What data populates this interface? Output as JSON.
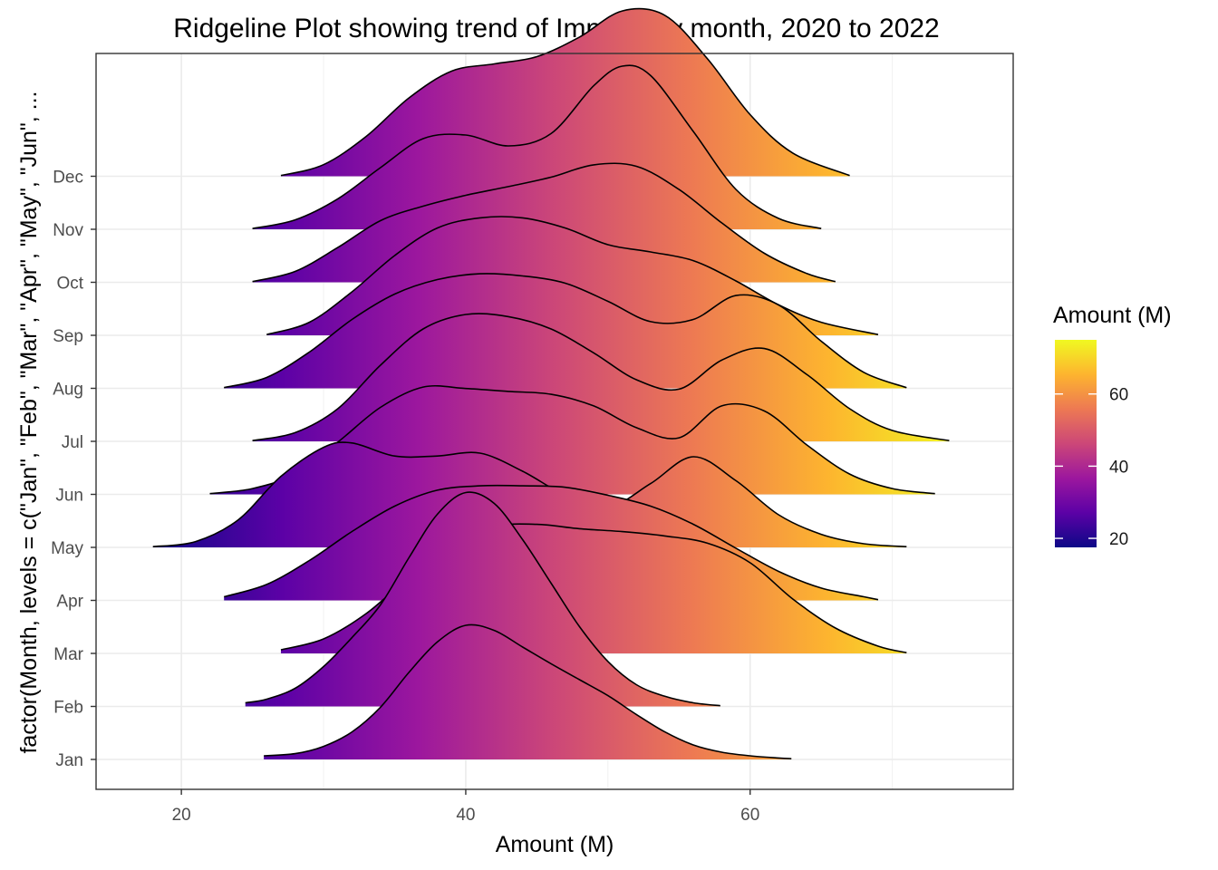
{
  "chart_data": {
    "type": "ridgeline",
    "title": "Ridgeline Plot showing trend of Imports by month, 2020 to 2022",
    "xlabel": "Amount (M)",
    "ylabel": "factor(Month, levels = c(\"Jan\", \"Feb\", \"Mar\", \"Apr\", \"May\", \"Jun\", ...",
    "xlim": [
      14,
      78.5
    ],
    "x_ticks": [
      20,
      40,
      60
    ],
    "grid": true,
    "fill_scale": {
      "title": "Amount (M)",
      "palette": "plasma",
      "min": 17.5,
      "max": 75,
      "ticks": [
        20,
        40,
        60
      ],
      "colors": [
        "#0d0887",
        "#5c01a6",
        "#9c179e",
        "#cc4778",
        "#ed7953",
        "#fdb42f",
        "#f0f921"
      ]
    },
    "outline_color": "#000000",
    "categories": [
      "Jan",
      "Feb",
      "Mar",
      "Apr",
      "May",
      "Jun",
      "Jul",
      "Aug",
      "Sep",
      "Oct",
      "Nov",
      "Dec"
    ],
    "series": [
      {
        "month": "Jan",
        "x": [
          25.8,
          28,
          30,
          32,
          34,
          36,
          38,
          40,
          42,
          44,
          46,
          48,
          50,
          52,
          54,
          56,
          58,
          60,
          62,
          62.9
        ],
        "density": [
          0.05,
          0.08,
          0.18,
          0.38,
          0.72,
          1.2,
          1.62,
          1.85,
          1.78,
          1.55,
          1.32,
          1.1,
          0.88,
          0.62,
          0.38,
          0.2,
          0.1,
          0.05,
          0.02,
          0.01
        ]
      },
      {
        "month": "Feb",
        "x": [
          24.5,
          26,
          28,
          30,
          32,
          34,
          36,
          38,
          40,
          42,
          44,
          46,
          48,
          50,
          52,
          54,
          56,
          57.9
        ],
        "density": [
          0.05,
          0.1,
          0.25,
          0.55,
          0.95,
          1.4,
          2.05,
          2.65,
          2.95,
          2.8,
          2.3,
          1.7,
          1.1,
          0.62,
          0.3,
          0.14,
          0.05,
          0.01
        ]
      },
      {
        "month": "Mar",
        "x": [
          27,
          30,
          33,
          36,
          39,
          42,
          45,
          48,
          51,
          54,
          57,
          60,
          63,
          66,
          69,
          71
        ],
        "density": [
          0.05,
          0.2,
          0.55,
          1.05,
          1.5,
          1.75,
          1.78,
          1.72,
          1.68,
          1.62,
          1.52,
          1.25,
          0.75,
          0.35,
          0.1,
          0.01
        ]
      },
      {
        "month": "Apr",
        "x": [
          23,
          26,
          29,
          32,
          35,
          38,
          41,
          44,
          47,
          50,
          53,
          56,
          59,
          62,
          65,
          68,
          69
        ],
        "density": [
          0.05,
          0.22,
          0.55,
          0.95,
          1.3,
          1.52,
          1.58,
          1.58,
          1.56,
          1.45,
          1.3,
          1.05,
          0.72,
          0.4,
          0.17,
          0.05,
          0.01
        ]
      },
      {
        "month": "May",
        "x": [
          18,
          21,
          24,
          27,
          30,
          32,
          35,
          38,
          41,
          44,
          47,
          50,
          53,
          56,
          59,
          62,
          65,
          68,
          71
        ],
        "density": [
          0.01,
          0.08,
          0.38,
          0.98,
          1.38,
          1.44,
          1.26,
          1.26,
          1.3,
          1.05,
          0.72,
          0.55,
          0.88,
          1.25,
          0.92,
          0.45,
          0.18,
          0.05,
          0.01
        ]
      },
      {
        "month": "Jun",
        "x": [
          22,
          25,
          28,
          31,
          34,
          37,
          40,
          43,
          46,
          49,
          52,
          55,
          58,
          61,
          64,
          67,
          70,
          73
        ],
        "density": [
          0.01,
          0.08,
          0.28,
          0.72,
          1.2,
          1.48,
          1.46,
          1.42,
          1.38,
          1.22,
          0.92,
          0.78,
          1.22,
          1.15,
          0.68,
          0.28,
          0.08,
          0.01
        ]
      },
      {
        "month": "Jul",
        "x": [
          25,
          28,
          31,
          34,
          37,
          40,
          43,
          46,
          49,
          52,
          55,
          58,
          61,
          64,
          67,
          70,
          74
        ],
        "density": [
          0.01,
          0.12,
          0.45,
          1.05,
          1.55,
          1.75,
          1.72,
          1.55,
          1.22,
          0.85,
          0.72,
          1.12,
          1.28,
          0.92,
          0.45,
          0.15,
          0.01
        ]
      },
      {
        "month": "Aug",
        "x": [
          23,
          26,
          29,
          32,
          35,
          38,
          41,
          44,
          47,
          50,
          53,
          56,
          59,
          62,
          65,
          68,
          71
        ],
        "density": [
          0.01,
          0.15,
          0.5,
          0.95,
          1.3,
          1.5,
          1.58,
          1.55,
          1.45,
          1.2,
          0.92,
          0.95,
          1.28,
          1.15,
          0.65,
          0.22,
          0.01
        ]
      },
      {
        "month": "Sep",
        "x": [
          26,
          29,
          32,
          35,
          38,
          41,
          44,
          47,
          50,
          53,
          56,
          59,
          62,
          65,
          69
        ],
        "density": [
          0.01,
          0.18,
          0.6,
          1.1,
          1.48,
          1.62,
          1.62,
          1.48,
          1.25,
          1.15,
          1.03,
          0.75,
          0.42,
          0.18,
          0.01
        ]
      },
      {
        "month": "Oct",
        "x": [
          25,
          28,
          31,
          34,
          37,
          40,
          43,
          46,
          49,
          52,
          55,
          58,
          61,
          64,
          66
        ],
        "density": [
          0.01,
          0.15,
          0.48,
          0.85,
          1.05,
          1.2,
          1.32,
          1.45,
          1.62,
          1.6,
          1.28,
          0.82,
          0.4,
          0.12,
          0.01
        ]
      },
      {
        "month": "Nov",
        "x": [
          25,
          28,
          31,
          34,
          37,
          40,
          43,
          46,
          49,
          51,
          53,
          56,
          59,
          62,
          65
        ],
        "density": [
          0.01,
          0.13,
          0.42,
          0.85,
          1.25,
          1.3,
          1.15,
          1.32,
          1.98,
          2.25,
          2.12,
          1.35,
          0.55,
          0.15,
          0.01
        ]
      },
      {
        "month": "Dec",
        "x": [
          27,
          30,
          33,
          36,
          39,
          42,
          45,
          48,
          51,
          54,
          57,
          60,
          63,
          67
        ],
        "density": [
          0.01,
          0.16,
          0.55,
          1.08,
          1.45,
          1.55,
          1.65,
          1.92,
          2.28,
          2.22,
          1.62,
          0.85,
          0.32,
          0.01
        ]
      }
    ]
  }
}
